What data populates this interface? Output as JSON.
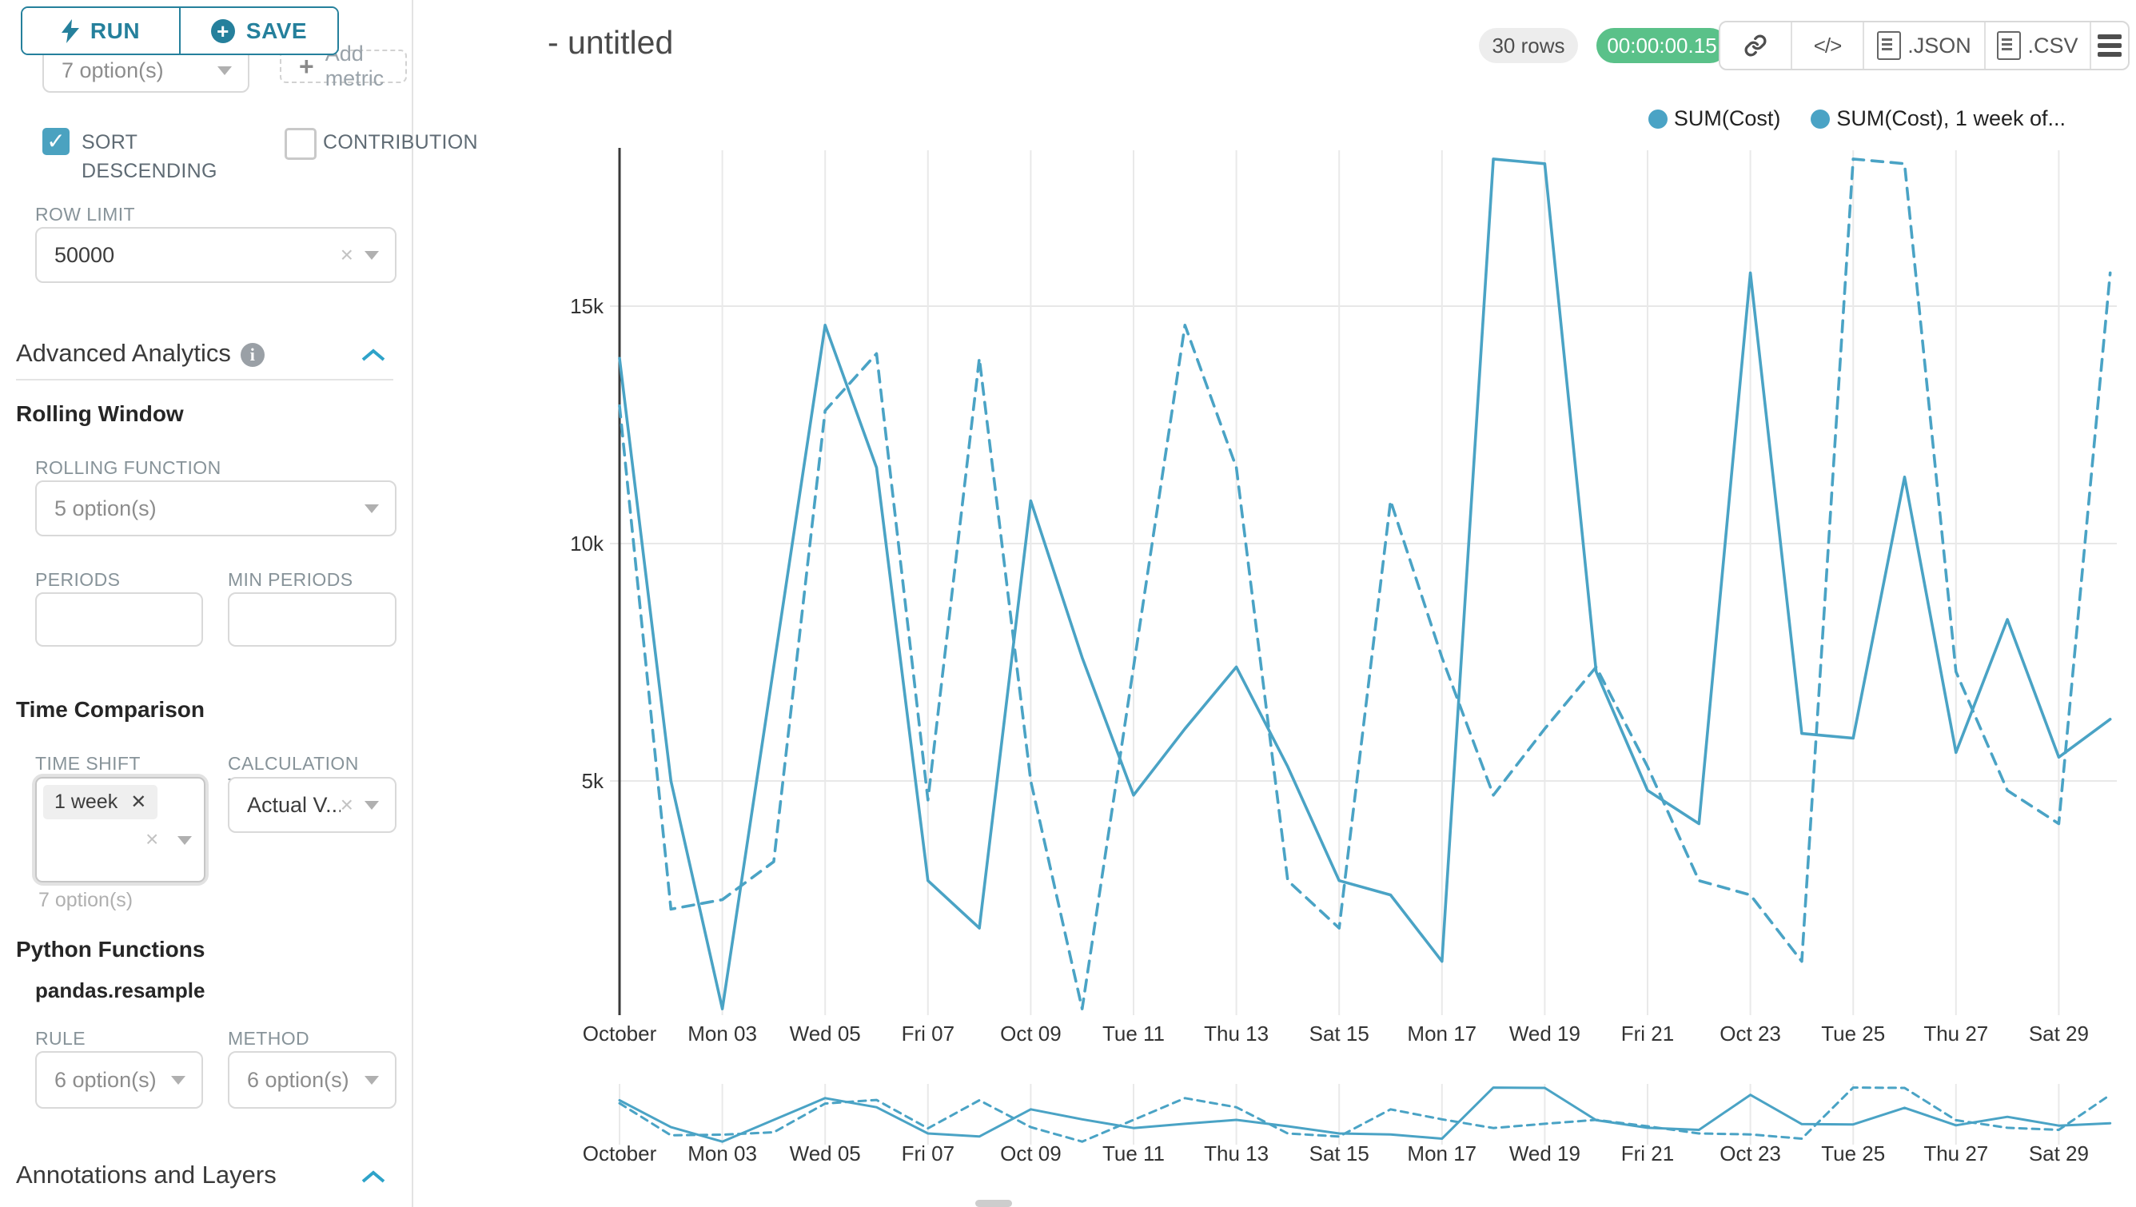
{
  "sidebar": {
    "run_label": "RUN",
    "save_label": "SAVE",
    "groupby_value": "7 option(s)",
    "add_metric_label": "Add metric",
    "sort_descending_label": "SORT DESCENDING",
    "contribution_label": "CONTRIBUTION",
    "row_limit_label": "ROW LIMIT",
    "row_limit_value": "50000",
    "advanced_analytics_title": "Advanced Analytics",
    "rolling_window_title": "Rolling Window",
    "rolling_function_label": "ROLLING FUNCTION",
    "rolling_function_value": "5 option(s)",
    "periods_label": "PERIODS",
    "min_periods_label": "MIN PERIODS",
    "time_comparison_title": "Time Comparison",
    "time_shift_label": "TIME SHIFT",
    "time_shift_tag": "1 week",
    "time_shift_hint": "7 option(s)",
    "calculation_type_label": "CALCULATION TYPE",
    "calculation_type_value": "Actual V...",
    "python_functions_title": "Python Functions",
    "resample_label": "pandas.resample",
    "rule_label": "RULE",
    "rule_value": "6 option(s)",
    "method_label": "METHOD",
    "method_value": "6 option(s)",
    "annotations_title": "Annotations and Layers"
  },
  "header": {
    "title": "- untitled",
    "rows_badge": "30 rows",
    "timer": "00:00:00.15",
    "json_label": ".JSON",
    "csv_label": ".CSV"
  },
  "chart_data": {
    "type": "line",
    "title": "- untitled",
    "xlabel": "",
    "ylabel": "",
    "ylim": [
      0,
      18500
    ],
    "grid": true,
    "legend_position": "top-right",
    "line_color": "#4AA3C5",
    "y_tick_labels": [
      "5k",
      "10k",
      "15k"
    ],
    "y_tick_values": [
      5000,
      10000,
      15000
    ],
    "x_tick_labels": [
      "October",
      "Mon 03",
      "Wed 05",
      "Fri 07",
      "Oct 09",
      "Tue 11",
      "Thu 13",
      "Sat 15",
      "Mon 17",
      "Wed 19",
      "Fri 21",
      "Oct 23",
      "Tue 25",
      "Thu 27",
      "Sat 29"
    ],
    "categories": [
      "Oct 01",
      "Oct 02",
      "Oct 03",
      "Oct 04",
      "Oct 05",
      "Oct 06",
      "Oct 07",
      "Oct 08",
      "Oct 09",
      "Oct 10",
      "Oct 11",
      "Oct 12",
      "Oct 13",
      "Oct 14",
      "Oct 15",
      "Oct 16",
      "Oct 17",
      "Oct 18",
      "Oct 19",
      "Oct 20",
      "Oct 21",
      "Oct 22",
      "Oct 23",
      "Oct 24",
      "Oct 25",
      "Oct 26",
      "Oct 27",
      "Oct 28",
      "Oct 29",
      "Oct 30"
    ],
    "series": [
      {
        "name": "SUM(Cost)",
        "style": "solid",
        "values": [
          13900,
          5000,
          200,
          7400,
          14600,
          11600,
          2900,
          1900,
          10900,
          7600,
          4700,
          6100,
          7400,
          5300,
          2900,
          2600,
          1200,
          18100,
          18000,
          7300,
          4800,
          4100,
          15700,
          6000,
          5900,
          11400,
          5600,
          8400,
          5500,
          6300
        ]
      },
      {
        "name": "SUM(Cost), 1 week of...",
        "style": "dashed",
        "values": [
          12900,
          2300,
          2500,
          3300,
          12800,
          14000,
          4600,
          13900,
          5000,
          200,
          7400,
          14600,
          11600,
          2900,
          1900,
          10900,
          7600,
          4700,
          6100,
          7400,
          5300,
          2900,
          2600,
          1200,
          18100,
          18000,
          7300,
          4800,
          4100,
          15700
        ]
      }
    ],
    "has_mini_preview": true
  }
}
